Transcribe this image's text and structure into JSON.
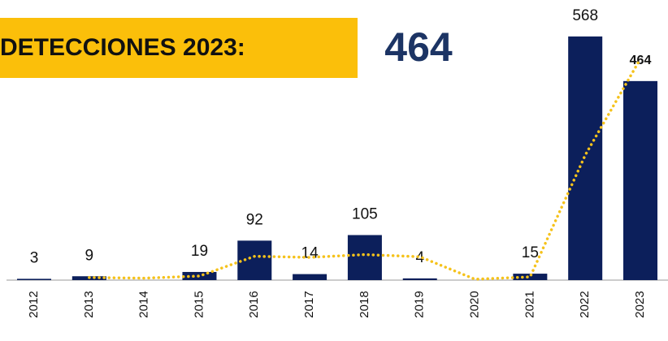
{
  "banner": {
    "label": "DETECCIONES 2023:",
    "value": 464
  },
  "chart_data": {
    "type": "bar",
    "categories": [
      "2012",
      "2013",
      "2014",
      "2015",
      "2016",
      "2017",
      "2018",
      "2019",
      "2020",
      "2021",
      "2022",
      "2023"
    ],
    "series": [
      {
        "type": "bar",
        "color": "#0c1f5b",
        "values": [
          3,
          9,
          null,
          19,
          92,
          14,
          105,
          4,
          null,
          15,
          568,
          464
        ]
      },
      {
        "type": "line",
        "color": "#f5c21b",
        "values": [
          null,
          6,
          4.5,
          9.5,
          55.5,
          53,
          59.5,
          54.5,
          2,
          7.5,
          291.5,
          516
        ]
      }
    ],
    "ylim": [
      0,
      600
    ]
  }
}
